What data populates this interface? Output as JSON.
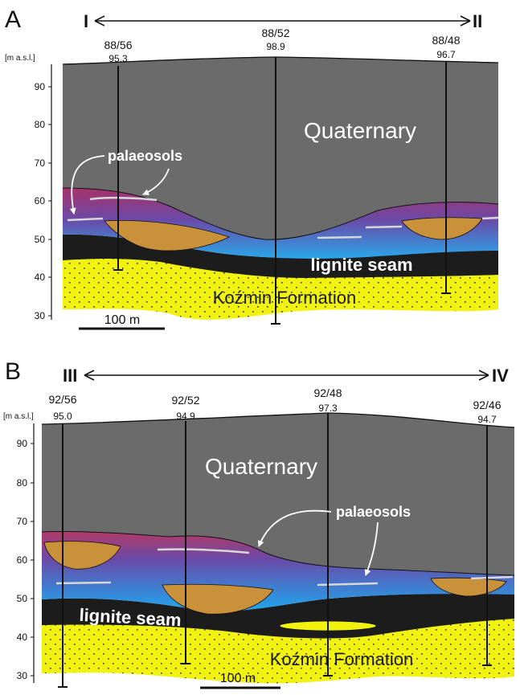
{
  "panel_a": {
    "letter": "A",
    "section_start": "I",
    "section_end": "II",
    "unit": "[m a.s.l.]",
    "ticks": [
      "90",
      "80",
      "70",
      "60",
      "50",
      "40",
      "30"
    ],
    "boreholes": [
      {
        "id": "88/56",
        "elevation": "95.3"
      },
      {
        "id": "88/52",
        "elevation": "98.9"
      },
      {
        "id": "88/48",
        "elevation": "96.7"
      }
    ],
    "quaternary_label": "Quaternary",
    "palaeosols_label": "palaeosols",
    "lignite_label": "lignite seam",
    "kozmin_label": "Koźmin Formation",
    "scale_label": "100 m"
  },
  "panel_b": {
    "letter": "B",
    "section_start": "III",
    "section_end": "IV",
    "unit": "[m a.s.l.]",
    "ticks": [
      "90",
      "80",
      "70",
      "60",
      "50",
      "40",
      "30"
    ],
    "boreholes": [
      {
        "id": "92/56",
        "elevation": "95.0"
      },
      {
        "id": "92/52",
        "elevation": "94.9"
      },
      {
        "id": "92/48",
        "elevation": "97.3"
      },
      {
        "id": "92/46",
        "elevation": "94.7"
      }
    ],
    "quaternary_label": "Quaternary",
    "palaeosols_label": "palaeosols",
    "lignite_label": "lignite seam",
    "kozmin_label": "Koźmin Formation",
    "scale_label": "100 m"
  },
  "colors": {
    "quaternary": "#6b6b6b",
    "lignite": "#1c1c1c",
    "kozmin": "#f2f20f",
    "sand_lens": "#c9913a",
    "palaeosol_top": "#a8326a",
    "palaeosol_bottom": "#2aa0e0"
  }
}
